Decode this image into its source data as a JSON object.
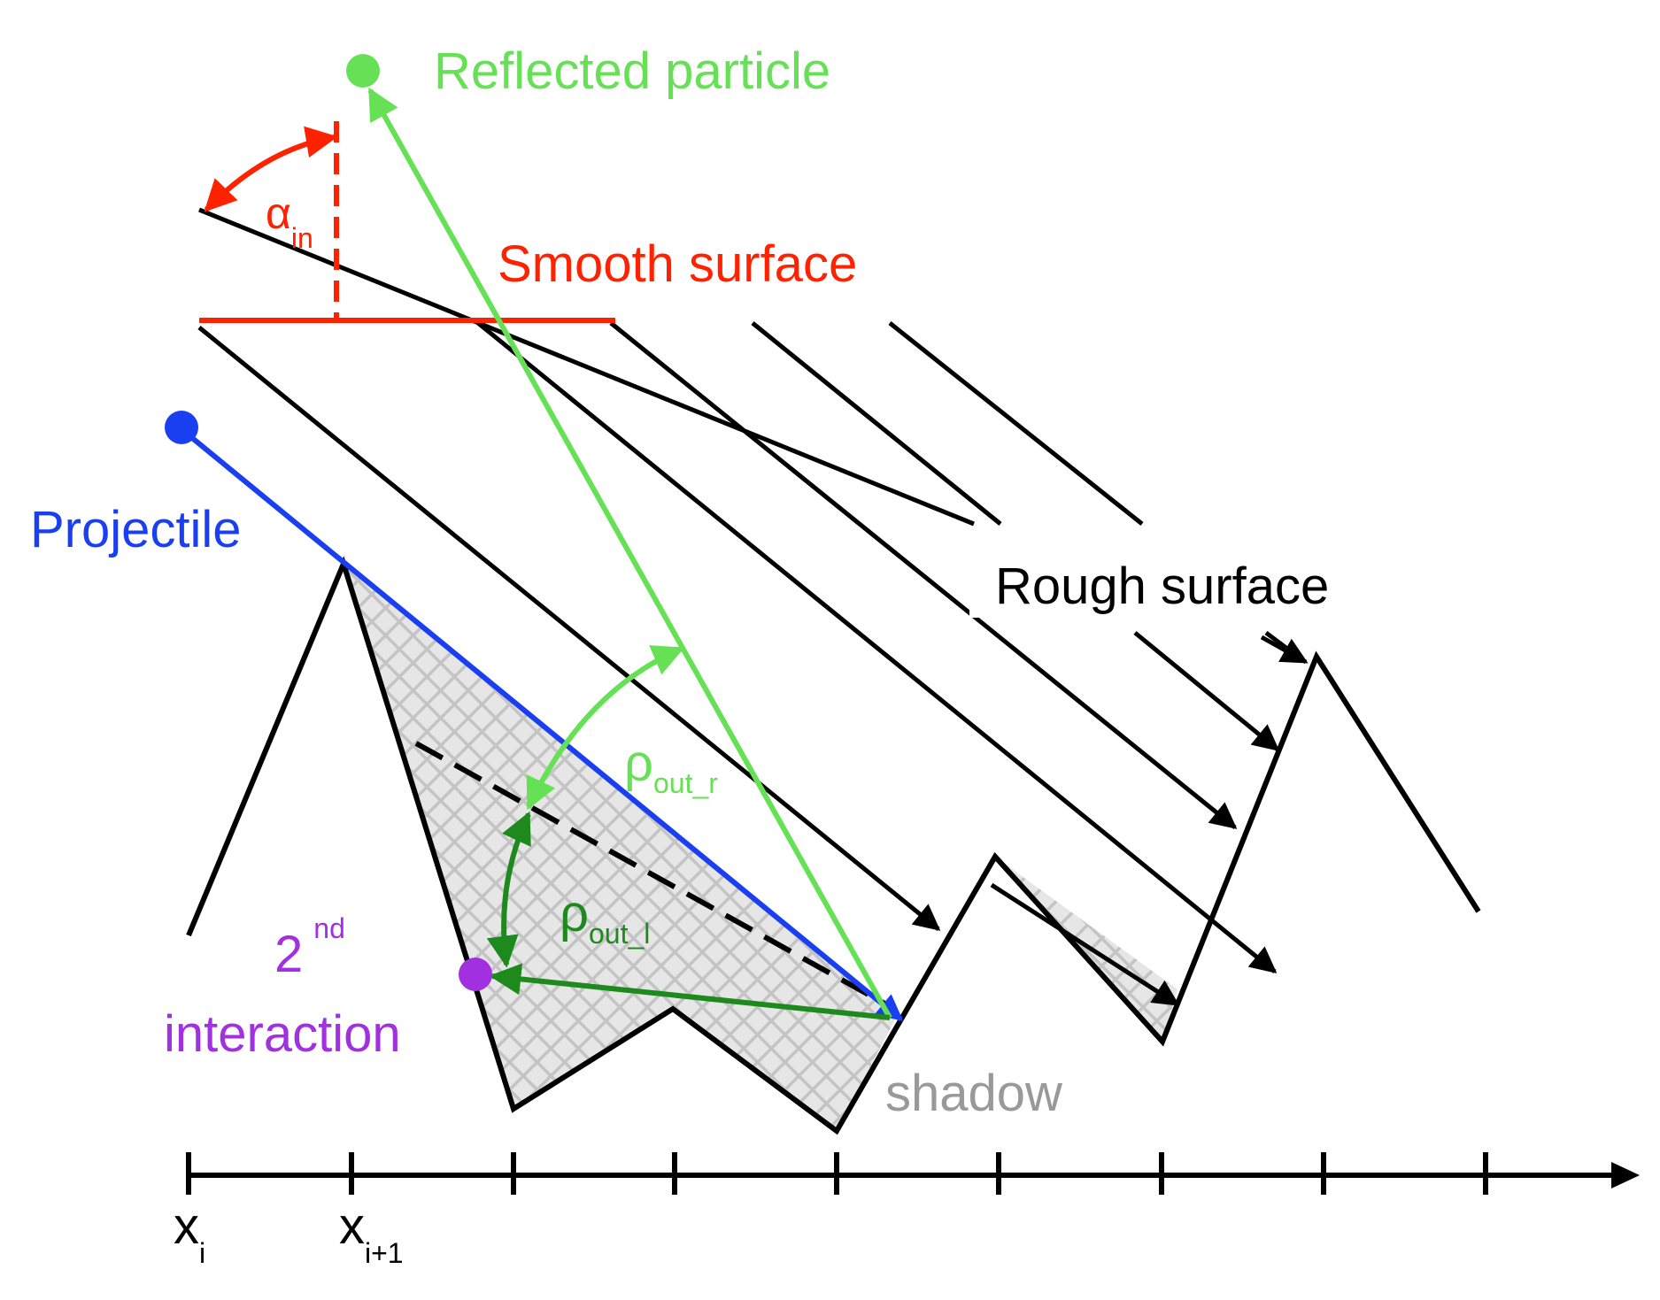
{
  "labels": {
    "reflected_particle": "Reflected particle",
    "alpha": "α",
    "alpha_sub": "in",
    "smooth_surface": "Smooth surface",
    "projectile": "Projectile",
    "rough_surface": "Rough surface",
    "rho_out_r": "ρ",
    "rho_out_r_sub": "out_r",
    "rho_out_l": "ρ",
    "rho_out_l_sub": "out_l",
    "second_num": "2",
    "second_sup": "nd",
    "interaction": "interaction",
    "shadow": "shadow",
    "x_i": "x",
    "x_i_sub": "i",
    "x_i1": "x",
    "x_i1_sub": "i+1"
  },
  "colors": {
    "reflected": "#66e055",
    "incidence": "#ff2200",
    "projectile": "#1a3ff0",
    "rough": "#000000",
    "rho_out_l": "#1e8a1e",
    "second_interaction": "#a030e0",
    "shadow_text": "#999999",
    "shadow_fill": "#c8c8c8"
  }
}
